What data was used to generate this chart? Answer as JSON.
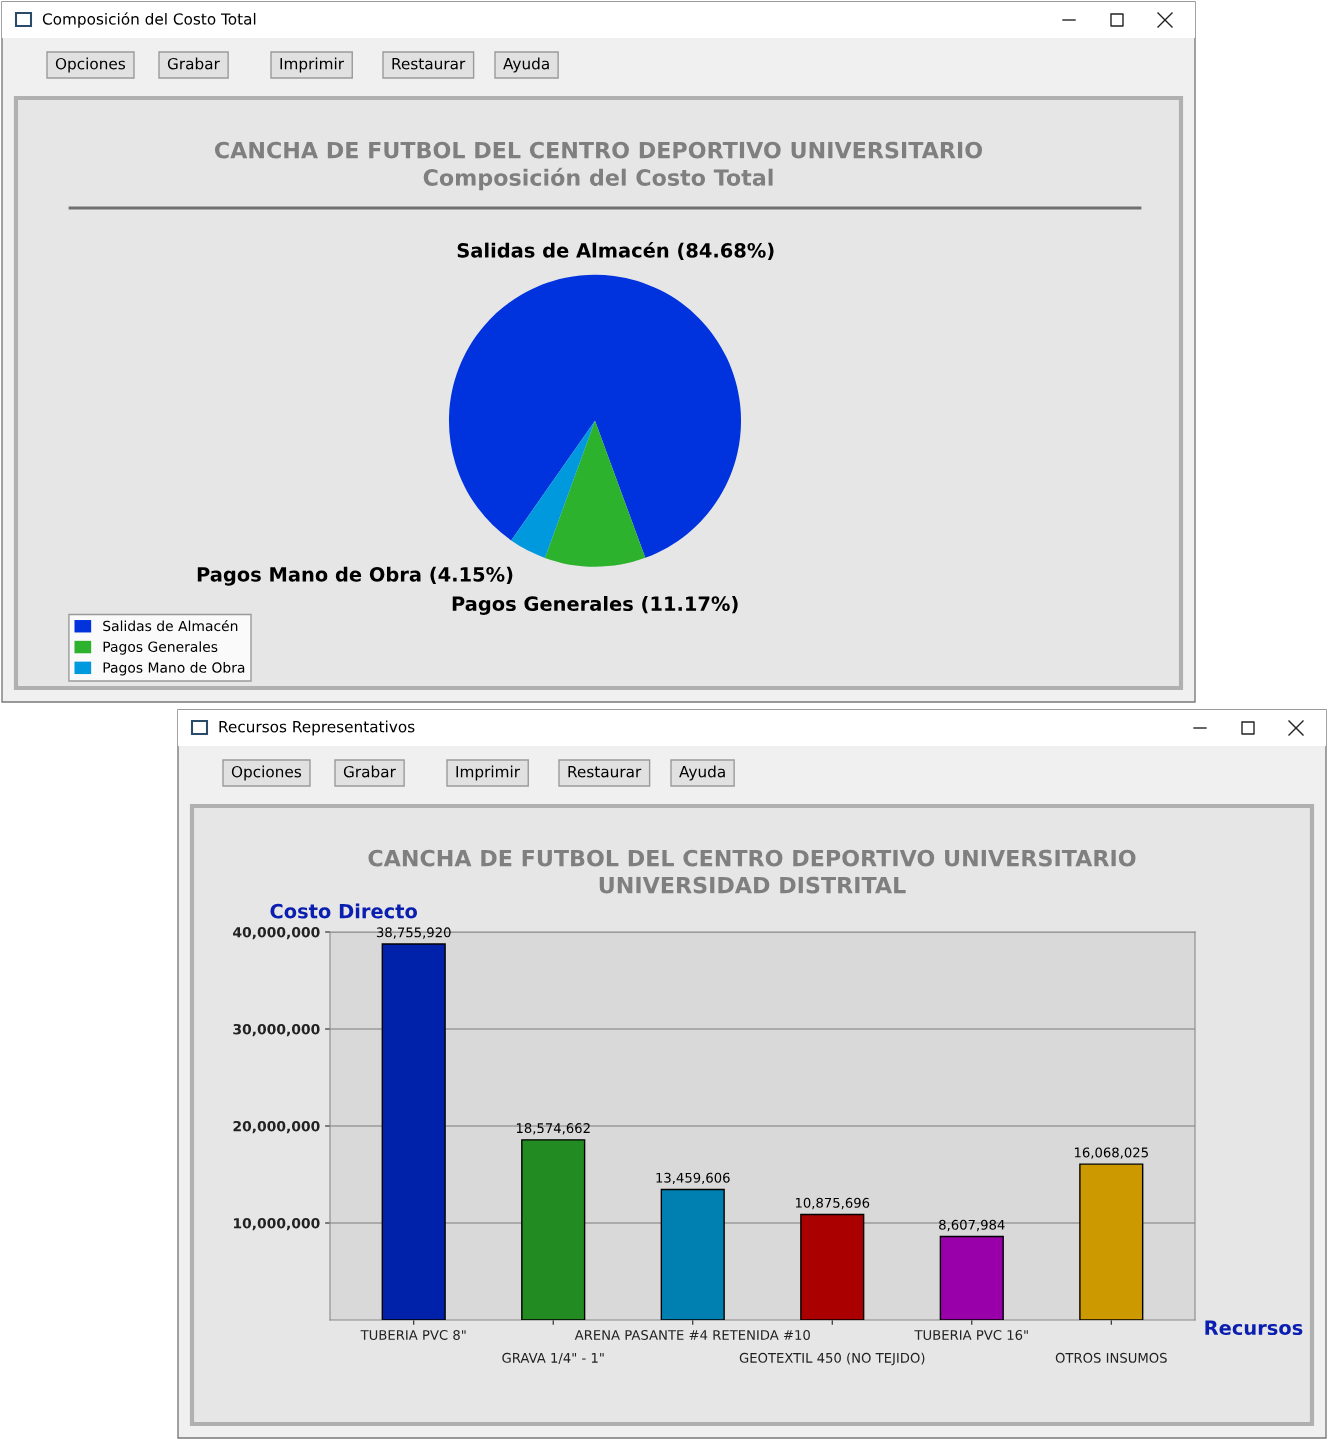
{
  "chart_data": [
    {
      "type": "pie",
      "title": "CANCHA DE FUTBOL DEL CENTRO DEPORTIVO UNIVERSITARIO",
      "subtitle": "Composición del Costo Total",
      "categories": [
        "Salidas de Almacén",
        "Pagos Generales",
        "Pagos Mano de Obra"
      ],
      "values": [
        84.68,
        11.17,
        4.15
      ],
      "colors": [
        "#0033dd",
        "#2db22d",
        "#0099dd"
      ],
      "value_labels": [
        "(84.68%)",
        "(11.17%)",
        "(4.15%)"
      ],
      "legend": "bottom left",
      "annotations": [
        "Composición del Costo Total",
        "Opciones",
        "Grabar",
        "Imprimir",
        "Restaurar",
        "Ayuda"
      ]
    },
    {
      "type": "bar",
      "title": "CANCHA DE FUTBOL DEL CENTRO DEPORTIVO UNIVERSITARIO",
      "subtitle": "UNIVERSIDAD DISTRITAL",
      "ylabel": "Costo Directo",
      "xlabel": "Recursos",
      "categories": [
        "TUBERIA PVC 8\"",
        "GRAVA 1/4\" - 1\"",
        "ARENA PASANTE #4 RETENIDA #10",
        "GEOTEXTIL 450 (NO TEJIDO)",
        "TUBERIA PVC 16\"",
        "OTROS INSUMOS"
      ],
      "values": [
        38755920,
        18574662,
        13459606,
        10875696,
        8607984,
        16068025
      ],
      "value_labels": [
        "38,755,920",
        "18,574,662",
        "13,459,606",
        "10,875,696",
        "8,607,984",
        "16,068,025"
      ],
      "colors": [
        "#0022aa",
        "#228b22",
        "#0080b0",
        "#aa0000",
        "#9900aa",
        "#cc9900"
      ],
      "ylim": [
        0,
        40000000
      ],
      "yticks": [
        {
          "value": 10000000,
          "label": "10,000,000"
        },
        {
          "value": 20000000,
          "label": "20,000,000"
        },
        {
          "value": 30000000,
          "label": "30,000,000"
        },
        {
          "value": 40000000,
          "label": "40,000,000"
        }
      ],
      "grid": "y",
      "annotations": [
        "Recursos Representativos",
        "Opciones",
        "Grabar",
        "Imprimir",
        "Restaurar",
        "Ayuda"
      ]
    }
  ]
}
